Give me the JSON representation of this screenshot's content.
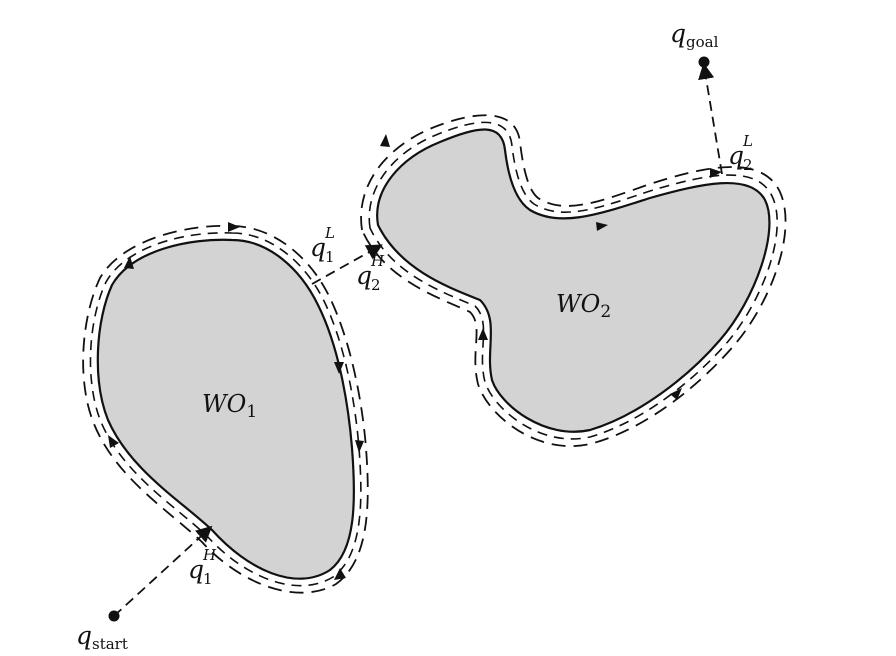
{
  "colors": {
    "obstacle_fill": "#d3d3d3",
    "stroke": "#111111",
    "background": "#ffffff"
  },
  "obstacles": [
    {
      "name": "WO",
      "subscript": "1"
    },
    {
      "name": "WO",
      "subscript": "2"
    }
  ],
  "points": {
    "start": {
      "symbol": "q",
      "subscript": "start"
    },
    "goal": {
      "symbol": "q",
      "subscript": "goal"
    }
  },
  "hit_leave_labels": [
    {
      "symbol": "q",
      "sup": "H",
      "sub": "1"
    },
    {
      "symbol": "q",
      "sup": "L",
      "sub": "1"
    },
    {
      "symbol": "q",
      "sup": "H",
      "sub": "2"
    },
    {
      "symbol": "q",
      "sup": "L",
      "sub": "2"
    }
  ]
}
